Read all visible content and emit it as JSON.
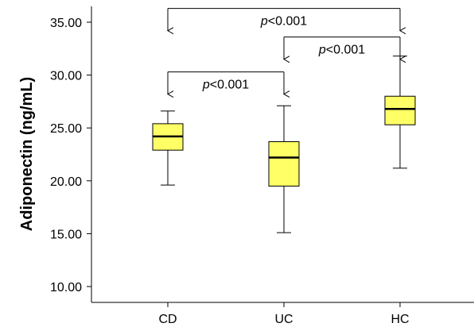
{
  "chart_data": {
    "type": "boxplot",
    "ylabel": "Adiponectin (ng/mL)",
    "xlabel": "",
    "ylim": [
      8.5,
      36.5
    ],
    "yticks": [
      10,
      15,
      20,
      25,
      30,
      35
    ],
    "ytick_labels": [
      "10.00",
      "15.00",
      "20.00",
      "25.00",
      "30.00",
      "35.00"
    ],
    "grid": false,
    "box_color": "#ffff66",
    "groups": [
      {
        "name": "CD",
        "min": 19.6,
        "q1": 22.9,
        "median": 24.2,
        "q3": 25.4,
        "max": 26.6
      },
      {
        "name": "UC",
        "min": 15.1,
        "q1": 19.5,
        "median": 22.2,
        "q3": 23.7,
        "max": 27.1
      },
      {
        "name": "HC",
        "min": 21.2,
        "q1": 25.3,
        "median": 26.8,
        "q3": 28.0,
        "max": 31.8
      }
    ],
    "annotations": [
      {
        "from": "CD",
        "to": "HC",
        "level": 36.3,
        "text_italic": "p",
        "text_rest": "<0.001"
      },
      {
        "from": "CD",
        "to": "UC",
        "level": 30.3,
        "text_italic": "p",
        "text_rest": "<0.001"
      },
      {
        "from": "UC",
        "to": "HC",
        "level": 33.6,
        "text_italic": "p",
        "text_rest": "<0.001"
      }
    ]
  }
}
